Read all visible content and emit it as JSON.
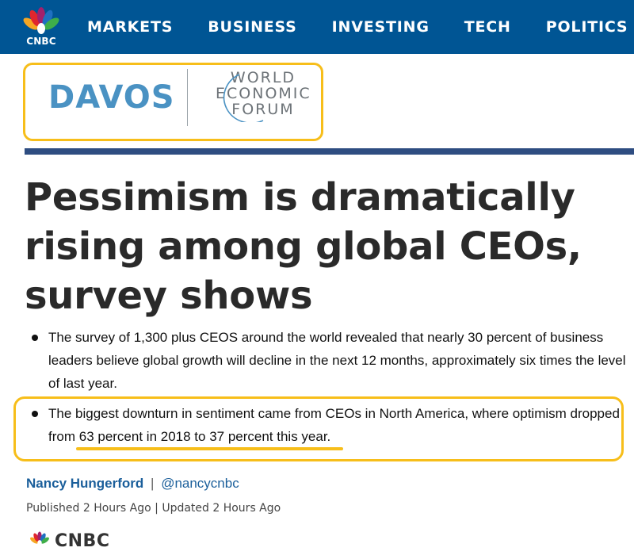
{
  "header": {
    "logo_text": "CNBC",
    "nav": [
      "MARKETS",
      "BUSINESS",
      "INVESTING",
      "TECH",
      "POLITICS"
    ]
  },
  "banner": {
    "davos": "DAVOS",
    "wef_lines": [
      "WORLD",
      "ECONOMIC",
      "FORUM"
    ]
  },
  "article": {
    "headline": "Pessimism is dramatically rising among global CEOs, survey shows",
    "bullets": {
      "b1": "The survey of 1,300 plus CEOS around the world revealed that nearly 30 percent of business leaders believe global growth will decline in the next 12 months, approximately six times the level of last year.",
      "b2_lead": "The biggest downturn in sentiment came from CEOs in North America, where optimism dropped from ",
      "b2_highlight": "63 percent in 2018 to 37 percent this year."
    },
    "author": "Nancy Hungerford",
    "separator": "|",
    "handle": "@nancycnbc",
    "dateline": "Published 2 Hours Ago | Updated 2 Hours Ago"
  },
  "footer": {
    "logo_text": "CNBC"
  },
  "colors": {
    "nav_bg": "#005594",
    "highlight": "#f7be1a",
    "rule": "#2e4d81",
    "link": "#1b5f9b",
    "davos_text": "#4a92c3"
  }
}
